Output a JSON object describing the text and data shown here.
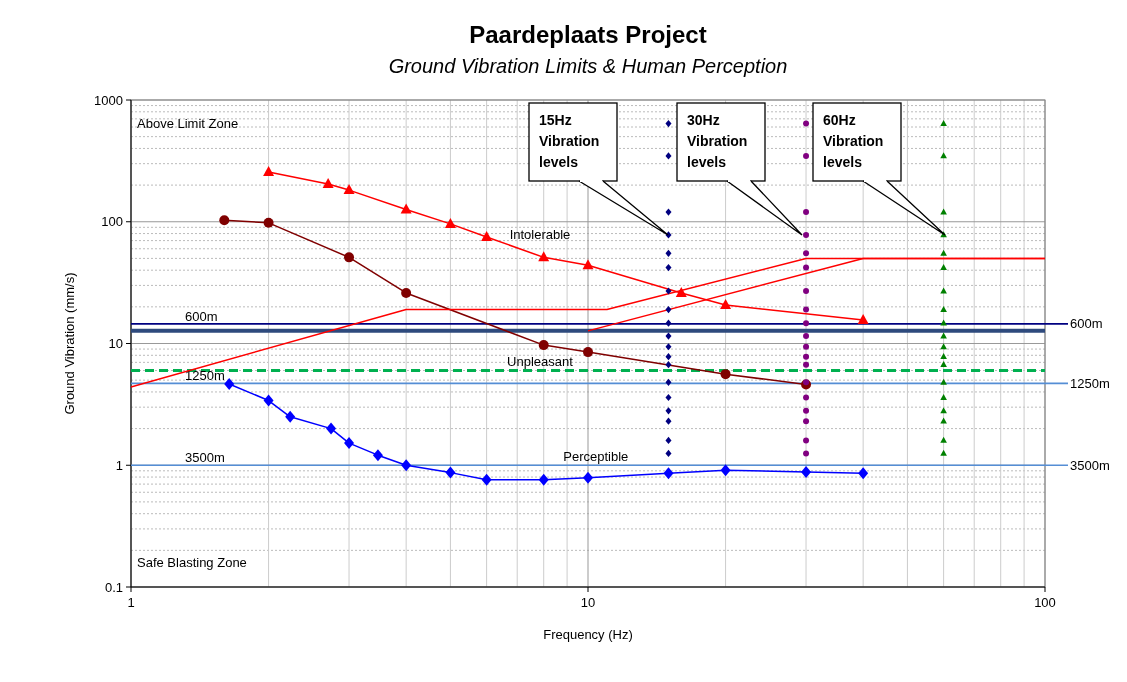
{
  "chart_data": {
    "type": "line",
    "title": "Paardeplaats  Project",
    "subtitle": "Ground Vibration Limits & Human Perception",
    "xlabel": "Frequency (Hz)",
    "ylabel": "Ground Vibration (mm/s)",
    "log": "xy",
    "grid": true,
    "xlim": [
      1,
      100
    ],
    "xticks": [
      1,
      10,
      100
    ],
    "ylim": [
      0.1,
      1000
    ],
    "yticks": [
      0.1,
      1,
      10,
      100,
      1000
    ],
    "series": [
      {
        "color": "#ff0000",
        "marker": "triangle",
        "x": [
          2,
          2.7,
          3,
          4,
          5,
          6,
          8,
          10,
          16,
          20,
          40
        ],
        "values": [
          256,
          204,
          182,
          126,
          96,
          75,
          51,
          44,
          26,
          20.7,
          15.6
        ]
      },
      {
        "color": "#800000",
        "marker": "circle",
        "x": [
          1.6,
          2,
          3,
          4,
          8,
          10,
          20,
          30
        ],
        "values": [
          103,
          98,
          51,
          26,
          9.7,
          8.5,
          5.6,
          4.6
        ]
      },
      {
        "color": "#0000ff",
        "marker": "diamond",
        "x": [
          1.64,
          2,
          2.23,
          2.74,
          3,
          3.47,
          4,
          5,
          6,
          8,
          10,
          15,
          20,
          30,
          40
        ],
        "values": [
          4.65,
          3.4,
          2.5,
          2.0,
          1.52,
          1.21,
          1.0,
          0.87,
          0.76,
          0.76,
          0.79,
          0.86,
          0.91,
          0.88,
          0.86
        ]
      },
      {
        "type": "line",
        "color": "#ff0000",
        "marker": "none",
        "x": [
          1,
          4,
          11,
          30,
          100
        ],
        "values": [
          4.4,
          19,
          19,
          50,
          50
        ]
      },
      {
        "type": "line",
        "color": "#ff0000",
        "marker": "none",
        "x": [
          10,
          40,
          100
        ],
        "values": [
          12.7,
          50,
          50
        ]
      },
      {
        "type": "scatter",
        "color": "#000080",
        "marker": "diamond",
        "x": [
          15,
          15,
          15,
          15,
          15,
          15,
          15,
          15,
          15,
          15,
          15,
          15,
          15,
          15,
          15,
          15,
          15,
          15,
          15
        ],
        "values": [
          640,
          347,
          120,
          78,
          55,
          42,
          27,
          19,
          14.7,
          11.5,
          9.4,
          7.8,
          6.7,
          4.8,
          3.6,
          2.8,
          2.3,
          1.6,
          1.25
        ]
      },
      {
        "type": "scatter",
        "color": "#800080",
        "marker": "circle",
        "x": [
          30,
          30,
          30,
          30,
          30,
          30,
          30,
          30,
          30,
          30,
          30,
          30,
          30,
          30,
          30,
          30,
          30,
          30,
          30
        ],
        "values": [
          640,
          347,
          120,
          78,
          55,
          42,
          27,
          19,
          14.7,
          11.5,
          9.4,
          7.8,
          6.7,
          4.8,
          3.6,
          2.8,
          2.3,
          1.6,
          1.25
        ]
      },
      {
        "type": "scatter",
        "color": "#008000",
        "marker": "triangle",
        "x": [
          60,
          60,
          60,
          60,
          60,
          60,
          60,
          60,
          60,
          60,
          60,
          60,
          60,
          60,
          60,
          60,
          60,
          60,
          60
        ],
        "values": [
          640,
          347,
          120,
          78,
          55,
          42,
          27,
          19,
          14.7,
          11.5,
          9.4,
          7.8,
          6.7,
          4.8,
          3.6,
          2.8,
          2.3,
          1.6,
          1.25
        ]
      }
    ],
    "ref_lines": [
      {
        "axis": "y",
        "value": 14.5,
        "label": "600m",
        "color": "#000080"
      },
      {
        "axis": "y",
        "value": 12.7,
        "color": "#2e4a7d"
      },
      {
        "axis": "y",
        "value": 6,
        "color": "#00b050",
        "line_style": "dashed"
      },
      {
        "axis": "y",
        "value": 4.7,
        "label": "1250m",
        "color": "#558ed5"
      },
      {
        "axis": "y",
        "value": 1,
        "label": "3500m",
        "color": "#558ed5"
      }
    ],
    "annotations": [
      "Above Limit Zone",
      "Safe Blasting Zone",
      "Intolerable",
      "Unpleasant",
      {
        "text": "Perceptible",
        "x": 10.4,
        "y": 0.95
      },
      "15Hz Vibration levels",
      "30Hz Vibration levels",
      "60Hz Vibration levels"
    ]
  }
}
